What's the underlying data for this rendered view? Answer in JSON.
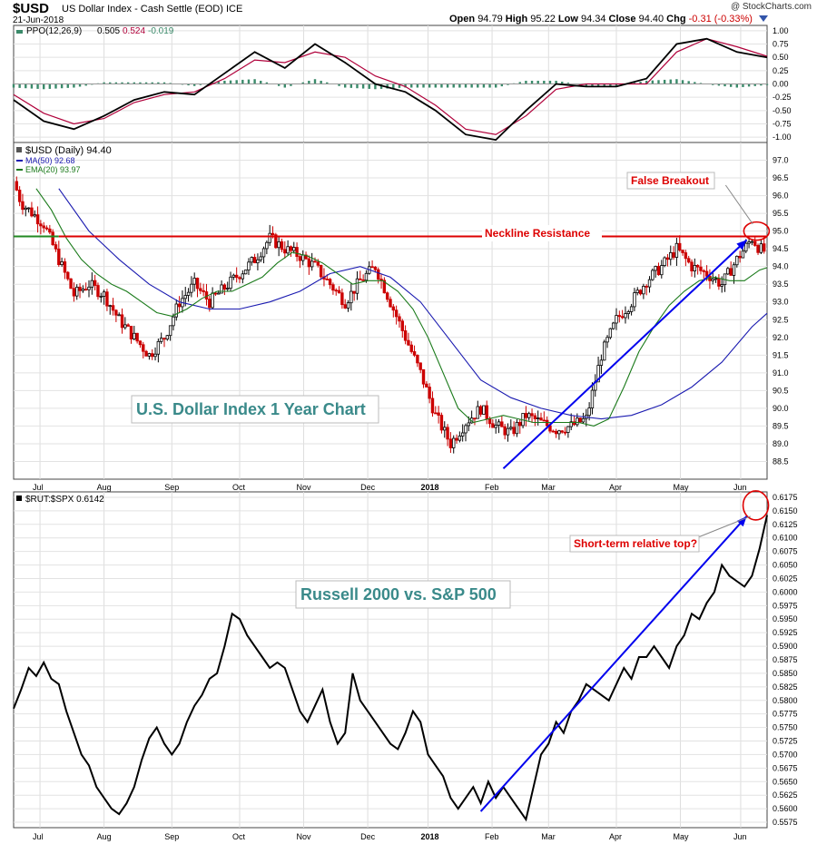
{
  "header": {
    "symbol": "$USD",
    "name": "US Dollar Index - Cash Settle (EOD)",
    "exchange": "ICE",
    "date": "21-Jun-2018",
    "open_label": "Open",
    "open": "94.79",
    "high_label": "High",
    "high": "95.22",
    "low_label": "Low",
    "low": "94.34",
    "close_label": "Close",
    "close": "94.40",
    "chg_label": "Chg",
    "chg": "-0.31 (-0.33%)",
    "brand": "@ StockCharts.com"
  },
  "colors": {
    "up": "#000000",
    "down": "#cc0000",
    "ma50": "#1a1ab0",
    "ema20": "#1a7a1a",
    "ppo": "#000000",
    "signal": "#b0003a",
    "hist": "#3a8a6a",
    "resistance": "#dd0000",
    "annot": "#dd0000",
    "arrow": "#0000ee",
    "boxtext": "#3a8a8a"
  },
  "chart_data": [
    {
      "type": "line",
      "name": "PPO panel",
      "legend": [
        "PPO(12,26,9)",
        "0.505",
        "0.524",
        "-0.019"
      ],
      "ylim": [
        -1.1,
        1.1
      ],
      "yticks": [
        "1.00",
        "0.75",
        "0.50",
        "0.25",
        "0.00",
        "-0.25",
        "-0.50",
        "-0.75",
        "-1.00"
      ],
      "yticks_values": [
        1.0,
        0.75,
        0.5,
        0.25,
        0.0,
        -0.25,
        -0.5,
        -0.75,
        -1.0
      ],
      "series": [
        {
          "name": "PPO",
          "x": [
            0,
            4,
            8,
            12,
            16,
            20,
            24,
            28,
            32,
            36,
            40,
            44,
            48,
            52,
            56,
            60,
            64,
            68,
            72,
            76,
            80,
            84,
            88,
            92,
            96,
            100
          ],
          "values": [
            -0.3,
            -0.7,
            -0.85,
            -0.6,
            -0.3,
            -0.15,
            -0.2,
            0.2,
            0.6,
            0.3,
            0.75,
            0.4,
            0.0,
            -0.15,
            -0.5,
            -0.95,
            -1.05,
            -0.5,
            0.0,
            -0.05,
            -0.05,
            0.1,
            0.75,
            0.85,
            0.6,
            0.5
          ]
        },
        {
          "name": "Signal",
          "x": [
            0,
            4,
            8,
            12,
            16,
            20,
            24,
            28,
            32,
            36,
            40,
            44,
            48,
            52,
            56,
            60,
            64,
            68,
            72,
            76,
            80,
            84,
            88,
            92,
            96,
            100
          ],
          "values": [
            -0.2,
            -0.55,
            -0.75,
            -0.65,
            -0.35,
            -0.2,
            -0.15,
            0.1,
            0.45,
            0.4,
            0.6,
            0.5,
            0.15,
            -0.05,
            -0.4,
            -0.85,
            -0.95,
            -0.6,
            -0.1,
            0.0,
            0.0,
            0.0,
            0.6,
            0.85,
            0.7,
            0.52
          ]
        }
      ]
    },
    {
      "type": "candlestick",
      "name": "$USD price panel",
      "legend": [
        "$USD (Daily) 94.40",
        "MA(50) 92.68",
        "EMA(20) 93.97"
      ],
      "ylim": [
        88.0,
        97.5
      ],
      "yticks": [
        "97.0",
        "96.5",
        "96.0",
        "95.5",
        "95.0",
        "94.5",
        "94.0",
        "93.5",
        "93.0",
        "92.5",
        "92.0",
        "91.5",
        "91.0",
        "90.5",
        "90.0",
        "89.5",
        "89.0",
        "88.5"
      ],
      "yticks_values": [
        97.0,
        96.5,
        96.0,
        95.5,
        95.0,
        94.5,
        94.0,
        93.5,
        93.0,
        92.5,
        92.0,
        91.5,
        91.0,
        90.5,
        90.0,
        89.5,
        89.0,
        88.5
      ],
      "xlabels": [
        "Jul",
        "Aug",
        "Sep",
        "Oct",
        "Nov",
        "Dec",
        "2018",
        "Feb",
        "Mar",
        "Apr",
        "May",
        "Jun"
      ],
      "xlabel_pos": [
        3.5,
        12,
        21,
        30,
        38.5,
        47,
        55,
        63.5,
        71,
        80,
        88.5,
        96.5
      ],
      "close_anchors": {
        "x": [
          0,
          1,
          2,
          4,
          6,
          8,
          10,
          12,
          14,
          16,
          18,
          20,
          22,
          24,
          26,
          28,
          30,
          32,
          34,
          36,
          38,
          40,
          42,
          44,
          46,
          48,
          50,
          52,
          54,
          56,
          58,
          60,
          62,
          64,
          66,
          68,
          70,
          72,
          74,
          76,
          78,
          80,
          82,
          84,
          86,
          88,
          90,
          92,
          94,
          96,
          98,
          99,
          100
        ],
        "y": [
          96.4,
          95.8,
          95.6,
          95.2,
          94.2,
          93.2,
          93.5,
          93.2,
          92.5,
          92.0,
          91.5,
          92.0,
          93.0,
          93.5,
          93.0,
          93.4,
          93.8,
          94.2,
          94.8,
          94.5,
          94.3,
          94.0,
          93.5,
          93.0,
          93.6,
          94.0,
          93.0,
          92.0,
          91.0,
          89.8,
          89.0,
          89.6,
          90.0,
          89.5,
          89.3,
          89.8,
          89.6,
          89.4,
          89.5,
          89.7,
          91.5,
          92.5,
          93.0,
          93.6,
          94.0,
          94.5,
          94.0,
          93.8,
          93.5,
          94.2,
          94.8,
          94.5,
          94.4
        ]
      },
      "ma50": {
        "x": [
          6,
          10,
          14,
          18,
          22,
          26,
          30,
          34,
          38,
          42,
          46,
          50,
          54,
          58,
          62,
          66,
          70,
          74,
          78,
          82,
          86,
          90,
          94,
          98,
          100
        ],
        "y": [
          96.2,
          95.0,
          94.2,
          93.5,
          93.0,
          92.8,
          92.8,
          93.0,
          93.3,
          93.8,
          94.0,
          93.7,
          93.0,
          91.9,
          90.8,
          90.3,
          90.0,
          89.8,
          89.7,
          89.8,
          90.1,
          90.6,
          91.3,
          92.3,
          92.68
        ]
      },
      "ema20": {
        "x": [
          3,
          5,
          7,
          9,
          11,
          13,
          15,
          17,
          19,
          21,
          23,
          25,
          27,
          29,
          31,
          33,
          35,
          37,
          39,
          41,
          43,
          45,
          47,
          49,
          51,
          53,
          55,
          57,
          59,
          61,
          63,
          65,
          67,
          69,
          71,
          73,
          75,
          77,
          79,
          81,
          83,
          85,
          87,
          89,
          91,
          93,
          95,
          97,
          99,
          100
        ],
        "y": [
          96.2,
          95.6,
          94.8,
          94.2,
          93.8,
          93.5,
          93.3,
          93.0,
          92.7,
          92.6,
          92.8,
          93.1,
          93.3,
          93.3,
          93.5,
          93.7,
          94.1,
          94.4,
          94.3,
          94.1,
          93.8,
          93.5,
          93.6,
          93.6,
          93.3,
          92.8,
          92.0,
          91.0,
          90.0,
          89.6,
          89.7,
          89.8,
          89.7,
          89.6,
          89.6,
          89.6,
          89.6,
          89.5,
          89.7,
          90.6,
          91.6,
          92.3,
          92.9,
          93.3,
          93.6,
          93.7,
          93.6,
          93.6,
          93.9,
          93.97
        ]
      },
      "neckline": 94.85,
      "annotations": [
        "Neckline Resistance",
        "False Breakout",
        "U.S. Dollar Index 1 Year Chart"
      ]
    },
    {
      "type": "line",
      "name": "$RUT:$SPX ratio panel",
      "legend": [
        "$RUT:$SPX 0.6142"
      ],
      "ylim": [
        0.5565,
        0.6185
      ],
      "yticks": [
        "0.6175",
        "0.6150",
        "0.6125",
        "0.6100",
        "0.6075",
        "0.6050",
        "0.6025",
        "0.6000",
        "0.5975",
        "0.5950",
        "0.5925",
        "0.5900",
        "0.5875",
        "0.5850",
        "0.5825",
        "0.5800",
        "0.5775",
        "0.5750",
        "0.5725",
        "0.5700",
        "0.5675",
        "0.5650",
        "0.5625",
        "0.5600",
        "0.5575"
      ],
      "yticks_values": [
        0.6175,
        0.615,
        0.6125,
        0.61,
        0.6075,
        0.605,
        0.6025,
        0.6,
        0.5975,
        0.595,
        0.5925,
        0.59,
        0.5875,
        0.585,
        0.5825,
        0.58,
        0.5775,
        0.575,
        0.5725,
        0.57,
        0.5675,
        0.565,
        0.5625,
        0.56,
        0.5575
      ],
      "xlabels": [
        "Jul",
        "Aug",
        "Sep",
        "Oct",
        "Nov",
        "Dec",
        "2018",
        "Feb",
        "Mar",
        "Apr",
        "May",
        "Jun"
      ],
      "xlabel_pos": [
        3.5,
        12,
        21,
        30,
        38.5,
        47,
        55,
        63.5,
        71,
        80,
        88.5,
        96.5
      ],
      "series": [
        {
          "name": "$RUT:$SPX",
          "x": [
            0,
            1,
            2,
            3,
            4,
            5,
            6,
            7,
            8,
            9,
            10,
            11,
            12,
            13,
            14,
            15,
            16,
            17,
            18,
            19,
            20,
            21,
            22,
            23,
            24,
            25,
            26,
            27,
            28,
            29,
            30,
            31,
            32,
            33,
            34,
            35,
            36,
            37,
            38,
            39,
            40,
            41,
            42,
            43,
            44,
            45,
            46,
            47,
            48,
            49,
            50,
            51,
            52,
            53,
            54,
            55,
            56,
            57,
            58,
            59,
            60,
            61,
            62,
            63,
            64,
            65,
            66,
            67,
            68,
            69,
            70,
            71,
            72,
            73,
            74,
            75,
            76,
            77,
            78,
            79,
            80,
            81,
            82,
            83,
            84,
            85,
            86,
            87,
            88,
            89,
            90,
            91,
            92,
            93,
            94,
            95,
            96,
            97,
            98,
            99,
            100
          ],
          "values": [
            0.5785,
            0.582,
            0.586,
            0.5845,
            0.587,
            0.584,
            0.583,
            0.578,
            0.574,
            0.57,
            0.568,
            0.564,
            0.562,
            0.56,
            0.559,
            0.561,
            0.564,
            0.569,
            0.573,
            0.575,
            0.572,
            0.57,
            0.572,
            0.576,
            0.579,
            0.581,
            0.584,
            0.585,
            0.59,
            0.596,
            0.595,
            0.592,
            0.59,
            0.588,
            0.586,
            0.587,
            0.586,
            0.582,
            0.578,
            0.576,
            0.579,
            0.582,
            0.576,
            0.572,
            0.574,
            0.585,
            0.58,
            0.578,
            0.576,
            0.574,
            0.572,
            0.571,
            0.574,
            0.578,
            0.576,
            0.57,
            0.568,
            0.566,
            0.562,
            0.56,
            0.562,
            0.564,
            0.561,
            0.565,
            0.562,
            0.564,
            0.562,
            0.56,
            0.558,
            0.564,
            0.57,
            0.572,
            0.576,
            0.574,
            0.578,
            0.58,
            0.583,
            0.582,
            0.581,
            0.58,
            0.583,
            0.586,
            0.584,
            0.588,
            0.588,
            0.59,
            0.588,
            0.586,
            0.59,
            0.592,
            0.596,
            0.595,
            0.598,
            0.6,
            0.605,
            0.603,
            0.602,
            0.601,
            0.603,
            0.608,
            0.6142
          ]
        }
      ],
      "annotations": [
        "Short-term relative top?",
        "Russell 2000 vs. S&P 500"
      ]
    }
  ]
}
